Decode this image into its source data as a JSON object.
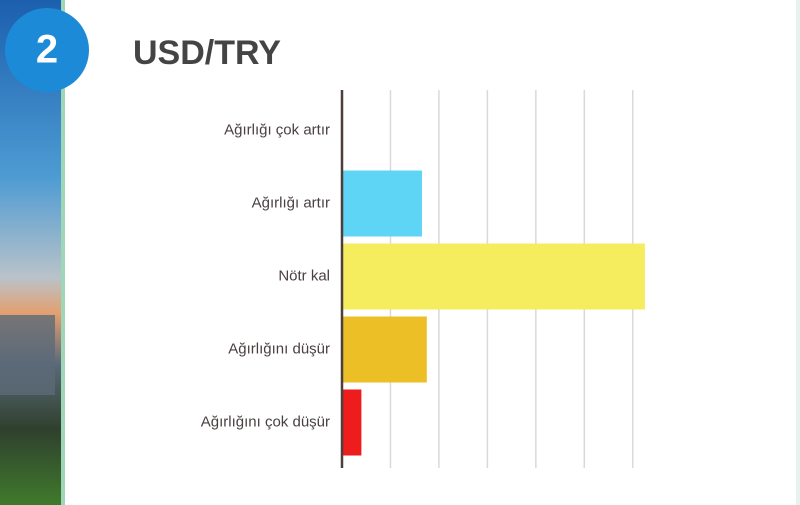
{
  "badge": "2",
  "chart_data": {
    "type": "hbar",
    "title": "USD/TRY",
    "categories": [
      "Ağırlığı çok artır",
      "Ağırlığı artır",
      "Nötr kal",
      "Ağırlığını düşür",
      "Ağırlığını çok düşür"
    ],
    "values": [
      0,
      1.65,
      6.25,
      1.75,
      0.4
    ],
    "colors": [
      "#5fd5f5",
      "#5fd5f5",
      "#f5ec5e",
      "#ebbf25",
      "#ee1c1c"
    ],
    "xlim": [
      0,
      6.5
    ],
    "xticks": [
      0,
      1,
      2,
      3,
      4,
      5,
      6
    ],
    "grid": true
  }
}
